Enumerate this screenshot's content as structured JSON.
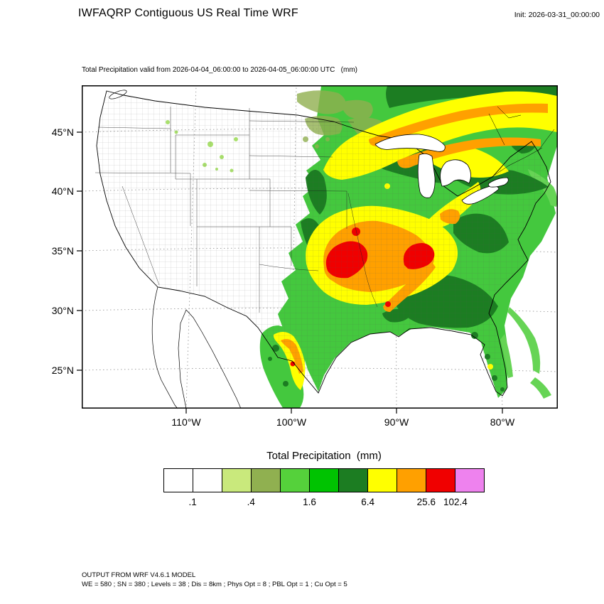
{
  "header": {
    "title": "IWFAQRP Contiguous US Real Time WRF",
    "init_label": "Init: 2026-03-31_00:00:00"
  },
  "map": {
    "subtitle": "Total Precipitation valid from 2026-04-04_06:00:00 to 2026-04-05_06:00:00 UTC   (mm)",
    "lat_ticks": [
      "45°N",
      "40°N",
      "35°N",
      "30°N",
      "25°N"
    ],
    "lon_ticks": [
      "110°W",
      "100°W",
      "90°W",
      "80°W"
    ]
  },
  "colorbar": {
    "title": "Total Precipitation  (mm)",
    "colors": [
      "#ffffff",
      "#ffffff",
      "#c9e97c",
      "#90b050",
      "#55d13b",
      "#00c301",
      "#1c7d22",
      "#ffff00",
      "#ffa000",
      "#f00000",
      "#ee82ee"
    ],
    "tick_labels": [
      ".1",
      ".4",
      "1.6",
      "6.4",
      "25.6",
      "102.4"
    ],
    "tick_positions": [
      1,
      3,
      5,
      7,
      9,
      10
    ]
  },
  "footer": {
    "line1": "OUTPUT FROM WRF V4.6.1 MODEL",
    "line2": "WE = 580 ; SN = 380 ; Levels = 38 ; Dis = 8km ; Phys Opt = 8 ; PBL Opt = 1 ; Cu Opt = 5"
  }
}
